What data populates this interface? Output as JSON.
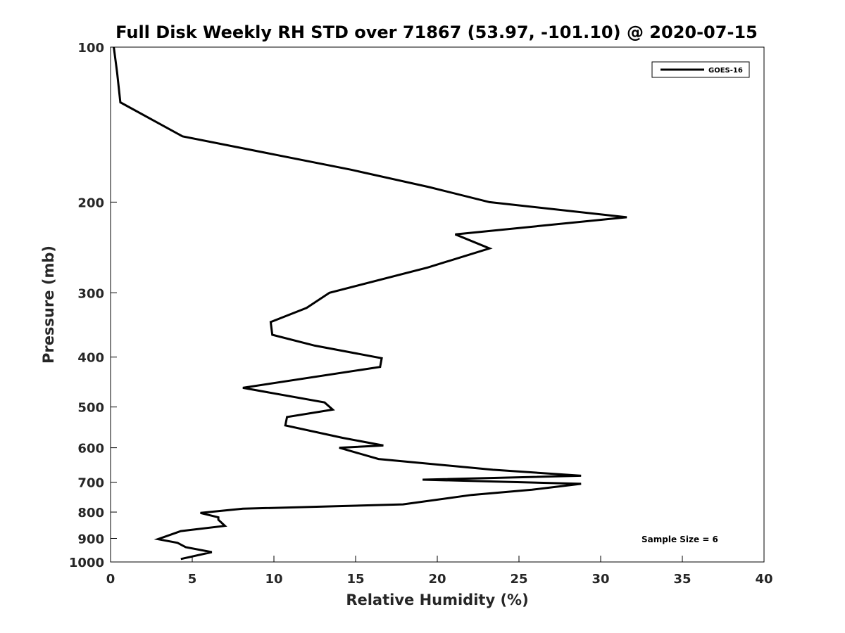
{
  "chart_data": {
    "type": "line",
    "title": "Full Disk Weekly RH STD over 71867 (53.97, -101.10) @ 2020-07-15",
    "xlabel": "Relative Humidity (%)",
    "ylabel": "Pressure (mb)",
    "xlim": [
      0,
      40
    ],
    "ylim": [
      100,
      1000
    ],
    "yscale": "log",
    "y_reversed": true,
    "grid": false,
    "legend_position": "top-right",
    "x_ticks": [
      0,
      5,
      10,
      15,
      20,
      25,
      30,
      35,
      40
    ],
    "y_ticks": [
      100,
      200,
      300,
      400,
      500,
      600,
      700,
      800,
      900,
      1000
    ],
    "annotation": "Sample Size = 6",
    "series": [
      {
        "name": "GOES-16",
        "color": "#000000",
        "x": [
          0.2,
          0.4,
          0.6,
          4.4,
          14.7,
          19.5,
          23.2,
          31.6,
          21.1,
          23.2,
          19.4,
          13.4,
          12.0,
          9.8,
          9.9,
          12.5,
          16.6,
          16.5,
          8.1,
          13.1,
          13.6,
          10.8,
          10.7,
          14.2,
          16.7,
          14.0,
          16.4,
          23.4,
          28.8,
          19.1,
          28.8,
          25.8,
          22.1,
          17.9,
          8.1,
          5.5,
          6.6,
          6.6,
          7.0,
          4.3,
          2.9,
          4.1,
          4.6,
          6.2,
          4.3
        ],
        "y": [
          100,
          112,
          128,
          149,
          173,
          187,
          200,
          214,
          231,
          246,
          268,
          300,
          321,
          342,
          362,
          380,
          402,
          418,
          459,
          490,
          506,
          523,
          543,
          574,
          594,
          600,
          631,
          662,
          680,
          692,
          705,
          724,
          741,
          773,
          788,
          803,
          819,
          828,
          851,
          871,
          903,
          918,
          936,
          957,
          987
        ]
      }
    ]
  }
}
